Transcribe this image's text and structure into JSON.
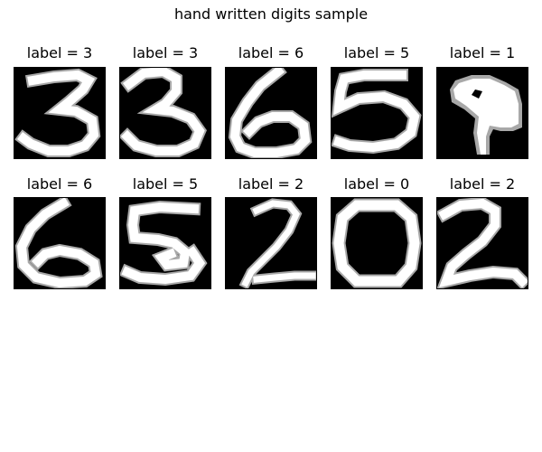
{
  "figure": {
    "title": "hand written digits sample"
  },
  "panels": [
    {
      "title": "label = 3",
      "digit": 3
    },
    {
      "title": "label = 3",
      "digit": 3
    },
    {
      "title": "label = 6",
      "digit": 6
    },
    {
      "title": "label = 5",
      "digit": 5
    },
    {
      "title": "label = 1",
      "digit": 1
    },
    {
      "title": "label = 6",
      "digit": 6
    },
    {
      "title": "label = 5",
      "digit": 5
    },
    {
      "title": "label = 2",
      "digit": 2
    },
    {
      "title": "label = 0",
      "digit": 0
    },
    {
      "title": "label = 2",
      "digit": 2
    }
  ],
  "colors": {
    "ink": "#ffffff",
    "background": "#000000",
    "soft_edge": "#a8a8a8"
  }
}
